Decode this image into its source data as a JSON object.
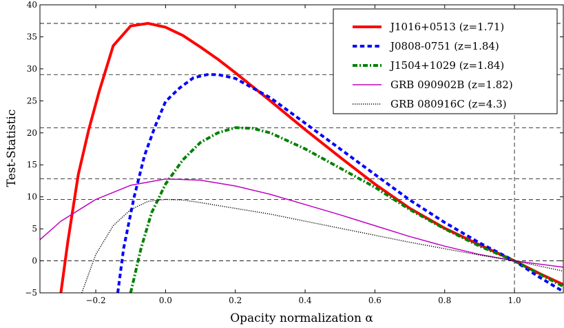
{
  "chart_data": {
    "type": "line",
    "title": "",
    "xlabel": "Opacity normalization α",
    "ylabel": "Test-Statistic",
    "xlim": [
      -0.36,
      1.14
    ],
    "ylim": [
      -5,
      40
    ],
    "xticks": [
      -0.2,
      0.0,
      0.2,
      0.4,
      0.6,
      0.8,
      1.0
    ],
    "yticks": [
      -5,
      0,
      5,
      10,
      15,
      20,
      25,
      30,
      35,
      40
    ],
    "xtick_labels": [
      "−0.2",
      "0.0",
      "0.2",
      "0.4",
      "0.6",
      "0.8",
      "1.0"
    ],
    "ytick_labels": [
      "−5",
      "0",
      "5",
      "10",
      "15",
      "20",
      "25",
      "30",
      "35",
      "40"
    ],
    "grid": false,
    "legend_position": "top-right",
    "reference_lines": {
      "horizontal": [
        37.1,
        29.1,
        20.8,
        12.8,
        9.6,
        0
      ],
      "vertical": [
        1.0
      ],
      "style": "dashed",
      "color": "#000000"
    },
    "series": [
      {
        "name": "J1016+0513 (z=1.71)",
        "color": "#ff0000",
        "style": "solid",
        "width": 4,
        "x": [
          -0.3,
          -0.28,
          -0.25,
          -0.22,
          -0.19,
          -0.15,
          -0.1,
          -0.05,
          0.0,
          0.05,
          0.1,
          0.15,
          0.2,
          0.3,
          0.4,
          0.5,
          0.6,
          0.7,
          0.8,
          0.9,
          1.0,
          1.08,
          1.14
        ],
        "y": [
          -5.0,
          3.0,
          13.5,
          20.5,
          26.5,
          33.6,
          36.7,
          37.1,
          36.5,
          35.2,
          33.4,
          31.5,
          29.4,
          25.0,
          20.5,
          16.2,
          12.0,
          8.2,
          5.1,
          2.5,
          0.0,
          -2.2,
          -3.7
        ]
      },
      {
        "name": "J0808-0751 (z=1.84)",
        "color": "#0000ff",
        "style": "dashed",
        "width": 4,
        "x": [
          -0.137,
          -0.12,
          -0.09,
          -0.06,
          -0.03,
          0.0,
          0.04,
          0.08,
          0.12,
          0.15,
          0.2,
          0.3,
          0.4,
          0.5,
          0.6,
          0.7,
          0.8,
          0.9,
          1.0,
          1.07,
          1.14
        ],
        "y": [
          -5.0,
          2.0,
          10.0,
          16.5,
          21.0,
          24.9,
          27.0,
          28.6,
          29.1,
          29.1,
          28.5,
          25.5,
          21.5,
          17.5,
          13.5,
          9.5,
          6.0,
          2.8,
          0.0,
          -2.5,
          -4.8
        ]
      },
      {
        "name": "J1504+1029 (z=1.84)",
        "color": "#008000",
        "style": "dashdot",
        "width": 4,
        "x": [
          -0.1,
          -0.07,
          -0.04,
          0.0,
          0.05,
          0.1,
          0.15,
          0.2,
          0.25,
          0.3,
          0.4,
          0.5,
          0.6,
          0.7,
          0.8,
          0.9,
          1.0,
          1.07,
          1.14
        ],
        "y": [
          -5.0,
          2.0,
          7.5,
          12.0,
          15.8,
          18.5,
          20.0,
          20.8,
          20.7,
          20.0,
          17.5,
          14.5,
          11.5,
          8.0,
          5.0,
          2.3,
          0.0,
          -2.0,
          -4.0
        ]
      },
      {
        "name": "GRB 090902B (z=1.82)",
        "color": "#c000c0",
        "style": "solid",
        "width": 1.5,
        "x": [
          -0.36,
          -0.3,
          -0.2,
          -0.1,
          0.0,
          0.1,
          0.2,
          0.3,
          0.4,
          0.5,
          0.6,
          0.7,
          0.8,
          0.9,
          1.0,
          1.14
        ],
        "y": [
          3.3,
          6.2,
          9.6,
          11.8,
          12.8,
          12.6,
          11.7,
          10.4,
          8.8,
          7.2,
          5.5,
          3.8,
          2.3,
          1.0,
          0.0,
          -1.0
        ]
      },
      {
        "name": "GRB 080916C (z=4.3)",
        "color": "#000000",
        "style": "dotted",
        "width": 1.5,
        "x": [
          -0.24,
          -0.2,
          -0.15,
          -0.1,
          -0.05,
          0.0,
          0.05,
          0.1,
          0.2,
          0.3,
          0.4,
          0.5,
          0.6,
          0.7,
          0.8,
          0.9,
          1.0,
          1.14
        ],
        "y": [
          -5.0,
          1.0,
          5.5,
          8.0,
          9.3,
          9.6,
          9.5,
          9.1,
          8.2,
          7.3,
          6.2,
          5.1,
          4.0,
          2.9,
          1.9,
          0.9,
          0.0,
          -1.6
        ]
      }
    ]
  }
}
